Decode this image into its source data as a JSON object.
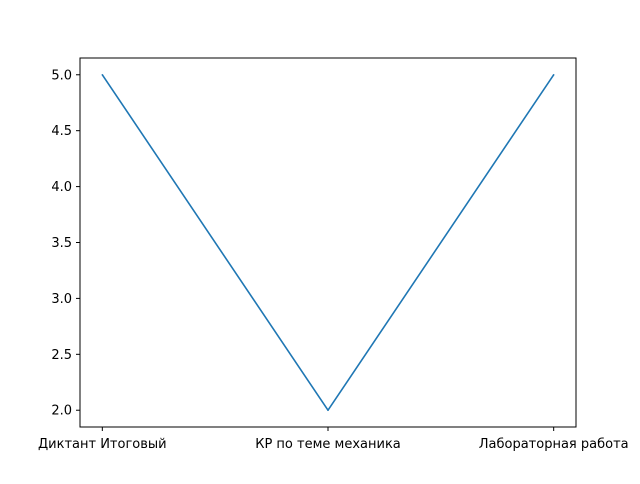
{
  "chart_data": {
    "type": "line",
    "categories": [
      "Диктант  Итоговый",
      "КР  по  теме  механика",
      "Лабораторная  работа"
    ],
    "series": [
      {
        "values": [
          5.0,
          2.0,
          5.0
        ]
      }
    ],
    "yticks": [
      "2.0",
      "2.5",
      "3.0",
      "3.5",
      "4.0",
      "4.5",
      "5.0"
    ],
    "ylim": [
      1.85,
      5.15
    ],
    "title": "",
    "xlabel": "",
    "ylabel": "",
    "grid": false,
    "line_color": "#1f77b4"
  }
}
